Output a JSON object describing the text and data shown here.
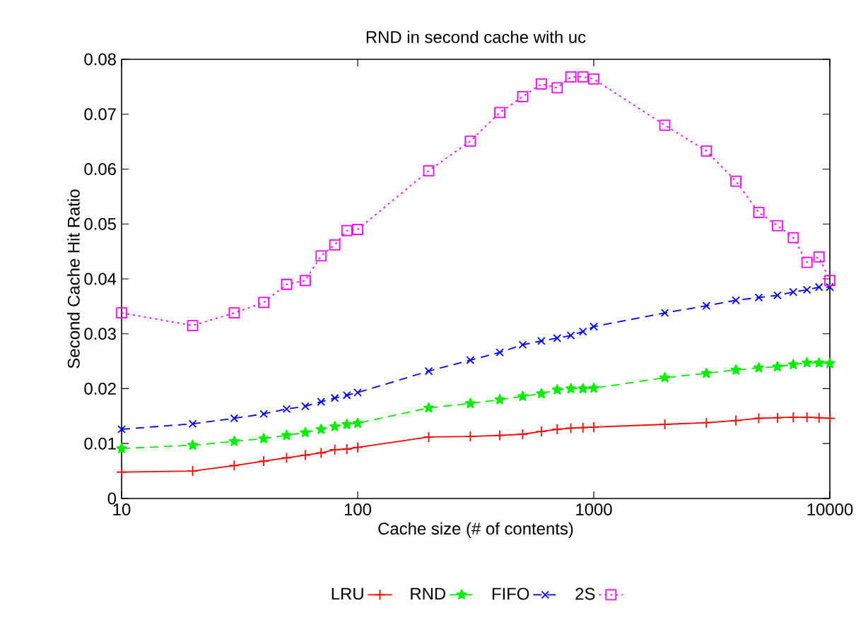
{
  "chart_data": {
    "type": "line",
    "title": "RND in second cache with uc",
    "xlabel": "Cache size (# of contents)",
    "ylabel": "Second Cache Hit Ratio",
    "log": "x",
    "xlim": [
      10,
      10000
    ],
    "xticks": [
      10,
      100,
      1000,
      10000
    ],
    "ylim": [
      0,
      0.08
    ],
    "yticks": [
      0,
      0.01,
      0.02,
      0.03,
      0.04,
      0.05,
      0.06,
      0.07,
      0.08
    ],
    "grid": false,
    "legend": "bottom",
    "x": [
      10,
      20,
      30,
      40,
      50,
      60,
      70,
      80,
      90,
      100,
      200,
      300,
      400,
      500,
      600,
      700,
      800,
      900,
      1000,
      2000,
      3000,
      4000,
      5000,
      6000,
      7000,
      8000,
      9000,
      10000
    ],
    "series": [
      {
        "name": "LRU",
        "color": "#ff0000",
        "marker": "plus",
        "line_style": "solid",
        "values": [
          0.0048,
          0.005,
          0.006,
          0.0068,
          0.0074,
          0.0079,
          0.0083,
          0.0089,
          0.009,
          0.0093,
          0.0112,
          0.0113,
          0.0115,
          0.0117,
          0.0122,
          0.0126,
          0.0128,
          0.0129,
          0.013,
          0.0135,
          0.0138,
          0.0142,
          0.0146,
          0.0147,
          0.0148,
          0.0148,
          0.0147,
          0.0146
        ]
      },
      {
        "name": "RND",
        "color": "#00ee00",
        "marker": "star",
        "line_style": "dashed",
        "values": [
          0.0091,
          0.0097,
          0.0104,
          0.0109,
          0.0115,
          0.012,
          0.0126,
          0.0131,
          0.0135,
          0.0137,
          0.0165,
          0.0173,
          0.018,
          0.0186,
          0.0191,
          0.0198,
          0.02,
          0.02,
          0.0201,
          0.022,
          0.0228,
          0.0234,
          0.0238,
          0.024,
          0.0244,
          0.0247,
          0.0247,
          0.0246
        ]
      },
      {
        "name": "FIFO",
        "color": "#0000ff",
        "marker": "cross",
        "line_style": "dashed",
        "values": [
          0.0126,
          0.0136,
          0.0146,
          0.0154,
          0.0163,
          0.0168,
          0.0176,
          0.0183,
          0.0188,
          0.0193,
          0.0232,
          0.0252,
          0.0266,
          0.028,
          0.0287,
          0.0292,
          0.0297,
          0.0304,
          0.0313,
          0.0338,
          0.0351,
          0.0361,
          0.0366,
          0.037,
          0.0376,
          0.038,
          0.0385,
          0.0385
        ]
      },
      {
        "name": "2S",
        "color": "#ff00ff",
        "marker": "square",
        "line_style": "dotted",
        "values": [
          0.0338,
          0.0315,
          0.0338,
          0.0357,
          0.039,
          0.0397,
          0.0442,
          0.0462,
          0.0488,
          0.049,
          0.0597,
          0.0651,
          0.0703,
          0.0732,
          0.0755,
          0.0748,
          0.0768,
          0.0768,
          0.0764,
          0.068,
          0.0633,
          0.0578,
          0.0521,
          0.0497,
          0.0475,
          0.043,
          0.044,
          0.0397
        ]
      }
    ]
  }
}
